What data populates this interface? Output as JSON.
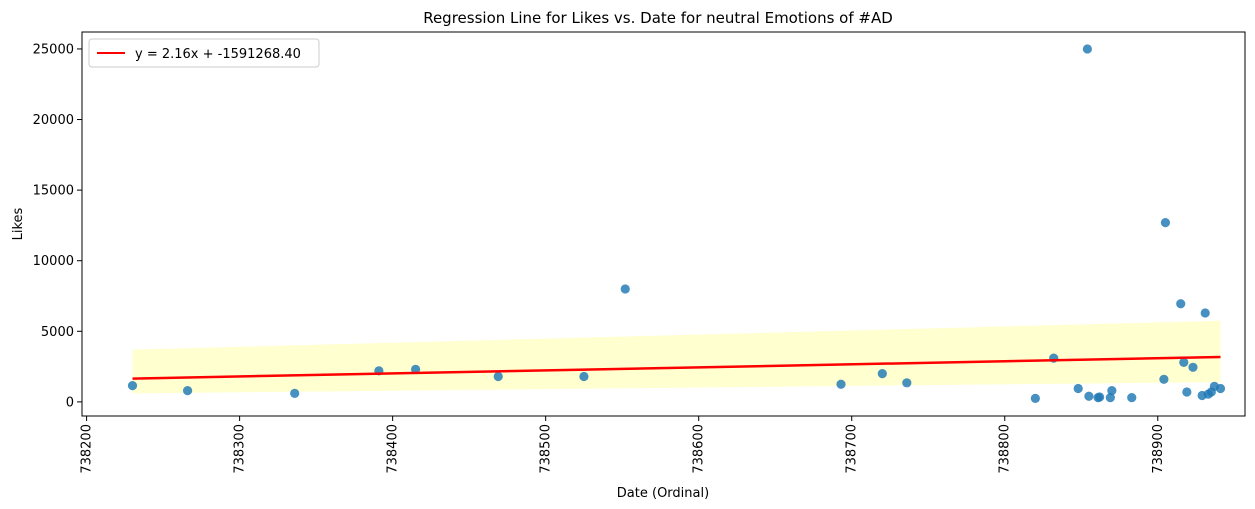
{
  "chart_data": {
    "type": "scatter",
    "title": "Regression Line for Likes vs. Date for neutral Emotions of #AD",
    "xlabel": "Date (Ordinal)",
    "ylabel": "Likes",
    "xlim": [
      738197,
      738957
    ],
    "ylim": [
      -1000,
      26200
    ],
    "x_ticks": [
      738200,
      738300,
      738400,
      738500,
      738600,
      738700,
      738800,
      738900
    ],
    "y_ticks": [
      0,
      5000,
      10000,
      15000,
      20000,
      25000
    ],
    "x_tick_labels": [
      "738200",
      "738300",
      "738400",
      "738500",
      "738600",
      "738700",
      "738800",
      "738900"
    ],
    "y_tick_labels": [
      "0",
      "5000",
      "10000",
      "15000",
      "20000",
      "25000"
    ],
    "grid": false,
    "legend": {
      "placement": "upper left",
      "entries": [
        "y = 2.16x + -1591268.40"
      ]
    },
    "colors": {
      "points": "#1f77b4",
      "line": "#ff0000",
      "band": "#ffffc0"
    },
    "points": [
      {
        "x": 738230,
        "y": 1150
      },
      {
        "x": 738266,
        "y": 800
      },
      {
        "x": 738336,
        "y": 600
      },
      {
        "x": 738391,
        "y": 2200
      },
      {
        "x": 738415,
        "y": 2300
      },
      {
        "x": 738469,
        "y": 1800
      },
      {
        "x": 738525,
        "y": 1800
      },
      {
        "x": 738552,
        "y": 8000
      },
      {
        "x": 738693,
        "y": 1250
      },
      {
        "x": 738720,
        "y": 2000
      },
      {
        "x": 738736,
        "y": 1350
      },
      {
        "x": 738820,
        "y": 250
      },
      {
        "x": 738832,
        "y": 3100
      },
      {
        "x": 738848,
        "y": 950
      },
      {
        "x": 738854,
        "y": 25000
      },
      {
        "x": 738855,
        "y": 400
      },
      {
        "x": 738861,
        "y": 300
      },
      {
        "x": 738862,
        "y": 350
      },
      {
        "x": 738869,
        "y": 300
      },
      {
        "x": 738870,
        "y": 800
      },
      {
        "x": 738883,
        "y": 300
      },
      {
        "x": 738904,
        "y": 1600
      },
      {
        "x": 738905,
        "y": 12700
      },
      {
        "x": 738915,
        "y": 6950
      },
      {
        "x": 738917,
        "y": 2800
      },
      {
        "x": 738919,
        "y": 700
      },
      {
        "x": 738923,
        "y": 2450
      },
      {
        "x": 738929,
        "y": 450
      },
      {
        "x": 738931,
        "y": 6300
      },
      {
        "x": 738933,
        "y": 550
      },
      {
        "x": 738935,
        "y": 700
      },
      {
        "x": 738937,
        "y": 1100
      },
      {
        "x": 738941,
        "y": 950
      }
    ],
    "regression_line": {
      "x": [
        738230,
        738941
      ],
      "y": [
        1650,
        3180
      ]
    },
    "confidence_band": {
      "x": [
        738230,
        738941
      ],
      "upper": [
        3700,
        5750
      ],
      "lower": [
        600,
        1400
      ]
    }
  }
}
